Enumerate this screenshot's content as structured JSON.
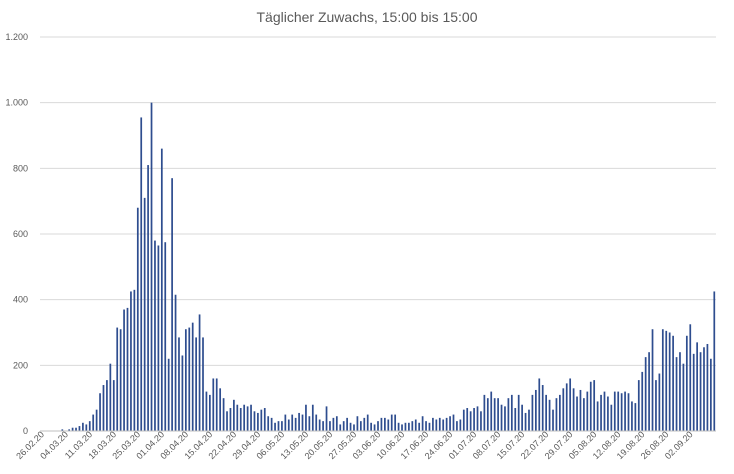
{
  "chart_data": {
    "type": "bar",
    "title": "Täglicher Zuwachs, 15:00 bis 15:00",
    "xlabel": "",
    "ylabel": "",
    "ylim": [
      0,
      1200
    ],
    "ytick_values": [
      0,
      200,
      400,
      600,
      800,
      1000,
      1200
    ],
    "ytick_labels": [
      "0",
      "200",
      "400",
      "600",
      "800",
      "1.000",
      "1.200"
    ],
    "grid": true,
    "legend": "none",
    "bar_color": "#2e4d8f",
    "start_date": "26.02.20",
    "end_date": "02.09.20",
    "tick_labels": [
      "26.02.20",
      "04.03.20",
      "11.03.20",
      "18.03.20",
      "25.03.20",
      "01.04.20",
      "08.04.20",
      "15.04.20",
      "22.04.20",
      "29.04.20",
      "06.05.20",
      "13.05.20",
      "20.05.20",
      "27.05.20",
      "03.06.20",
      "10.06.20",
      "17.06.20",
      "24.06.20",
      "01.07.20",
      "08.07.20",
      "15.07.20",
      "22.07.20",
      "29.07.20",
      "05.08.20",
      "12.08.20",
      "19.08.20",
      "26.08.20",
      "02.09.20"
    ],
    "values": [
      0,
      0,
      0,
      0,
      0,
      0,
      5,
      0,
      5,
      10,
      10,
      15,
      25,
      20,
      30,
      50,
      65,
      115,
      140,
      155,
      205,
      155,
      315,
      310,
      370,
      375,
      425,
      430,
      680,
      955,
      710,
      810,
      1000,
      580,
      565,
      860,
      575,
      220,
      770,
      415,
      285,
      230,
      310,
      315,
      330,
      285,
      355,
      285,
      120,
      110,
      160,
      160,
      130,
      100,
      60,
      70,
      95,
      80,
      70,
      80,
      75,
      80,
      60,
      55,
      65,
      70,
      45,
      40,
      25,
      30,
      30,
      50,
      35,
      50,
      40,
      55,
      50,
      80,
      45,
      80,
      50,
      35,
      30,
      75,
      30,
      40,
      45,
      20,
      30,
      40,
      25,
      20,
      45,
      30,
      40,
      50,
      25,
      20,
      30,
      40,
      40,
      35,
      50,
      50,
      25,
      20,
      25,
      25,
      30,
      35,
      25,
      45,
      30,
      25,
      40,
      35,
      40,
      35,
      40,
      45,
      50,
      30,
      35,
      65,
      70,
      60,
      70,
      75,
      60,
      110,
      100,
      120,
      100,
      100,
      80,
      75,
      100,
      110,
      70,
      110,
      80,
      55,
      65,
      110,
      125,
      160,
      140,
      110,
      95,
      65,
      100,
      110,
      130,
      145,
      160,
      130,
      105,
      125,
      100,
      120,
      150,
      155,
      90,
      110,
      120,
      105,
      80,
      120,
      120,
      115,
      120,
      115,
      90,
      85,
      155,
      180,
      225,
      240,
      310,
      155,
      175,
      310,
      305,
      300,
      290,
      225,
      240,
      205,
      290,
      325,
      235,
      270,
      240,
      255,
      265,
      220,
      425
    ]
  }
}
